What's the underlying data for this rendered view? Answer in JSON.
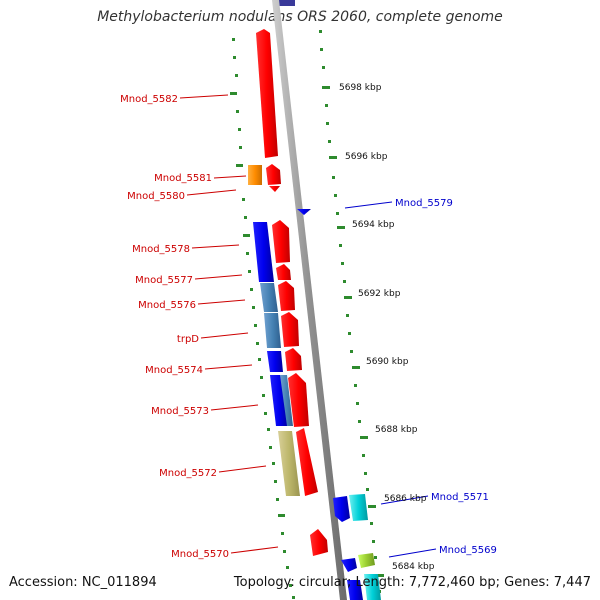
{
  "title": "Methylobacterium nodulans ORS 2060, complete genome",
  "footer": {
    "accession": "Accession: NC_011894",
    "summary": "Topology: circular; Length: 7,772,460 bp; Genes: 7,447"
  },
  "colors": {
    "forward_label": "#cc0000",
    "reverse_label": "#0000cc",
    "backbone": "#999999",
    "tick": "#2e8b2e"
  },
  "scale_labels": [
    "5698 kbp",
    "5696 kbp",
    "5694 kbp",
    "5692 kbp",
    "5690 kbp",
    "5688 kbp",
    "5686 kbp",
    "5684 kbp"
  ],
  "left_labels": [
    "Mnod_5582",
    "Mnod_5581",
    "Mnod_5580",
    "Mnod_5578",
    "Mnod_5577",
    "Mnod_5576",
    "trpD",
    "Mnod_5574",
    "Mnod_5573",
    "Mnod_5572",
    "Mnod_5570"
  ],
  "right_labels": [
    "Mnod_5579",
    "Mnod_5571",
    "Mnod_5569"
  ]
}
